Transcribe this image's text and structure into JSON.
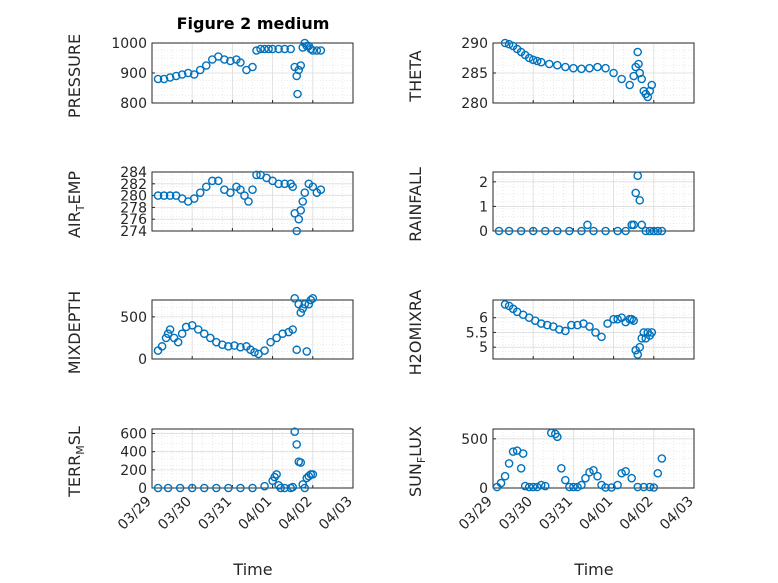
{
  "figure": {
    "title": "Figure 2 medium",
    "x_label": "Time",
    "x_tick_labels": [
      "03/29",
      "03/30",
      "03/31",
      "04/01",
      "04/02",
      "04/03"
    ]
  },
  "chart_data": [
    {
      "type": "scatter",
      "ylabel": "PRESSURE",
      "ylim": [
        800,
        1000
      ],
      "yticks": [
        800,
        900,
        1000
      ],
      "xlim": [
        0,
        5
      ],
      "grid": true,
      "color": "#0072BD",
      "x": [
        0.15,
        0.3,
        0.45,
        0.6,
        0.75,
        0.9,
        1.05,
        1.2,
        1.35,
        1.5,
        1.65,
        1.8,
        1.95,
        2.1,
        2.2,
        2.35,
        2.5,
        2.6,
        2.7,
        2.8,
        2.9,
        3.0,
        3.15,
        3.3,
        3.45,
        3.55,
        3.6,
        3.62,
        3.65,
        3.7,
        3.75,
        3.8,
        3.85,
        3.9,
        3.95,
        4.0,
        4.1,
        4.2
      ],
      "y": [
        880,
        880,
        885,
        890,
        895,
        900,
        895,
        910,
        925,
        945,
        955,
        945,
        940,
        945,
        935,
        910,
        920,
        975,
        980,
        980,
        980,
        980,
        980,
        980,
        980,
        920,
        890,
        830,
        910,
        925,
        985,
        1000,
        990,
        990,
        980,
        975,
        975,
        975
      ]
    },
    {
      "type": "scatter",
      "ylabel": "THETA",
      "ylim": [
        280,
        290
      ],
      "yticks": [
        280,
        285,
        290
      ],
      "xlim": [
        0,
        5
      ],
      "grid": true,
      "color": "#0072BD",
      "x": [
        0.3,
        0.4,
        0.5,
        0.6,
        0.7,
        0.8,
        0.9,
        1.0,
        1.1,
        1.2,
        1.4,
        1.6,
        1.8,
        2.0,
        2.2,
        2.4,
        2.6,
        2.8,
        3.0,
        3.2,
        3.4,
        3.5,
        3.55,
        3.6,
        3.62,
        3.65,
        3.7,
        3.75,
        3.8,
        3.85,
        3.9,
        3.95
      ],
      "y": [
        290,
        289.8,
        289.5,
        289,
        288.5,
        288,
        287.5,
        287.2,
        287,
        286.8,
        286.5,
        286.3,
        286,
        285.8,
        285.7,
        285.8,
        286,
        285.8,
        285,
        284,
        283,
        284.5,
        286,
        288.5,
        286.5,
        285,
        284,
        282,
        281.5,
        281,
        282,
        283
      ]
    },
    {
      "type": "scatter",
      "ylabel": "AIR_TEMP",
      "ylim": [
        274,
        284
      ],
      "yticks": [
        274,
        276,
        278,
        280,
        282,
        284
      ],
      "xlim": [
        0,
        5
      ],
      "grid": true,
      "color": "#0072BD",
      "x": [
        0.15,
        0.3,
        0.45,
        0.6,
        0.75,
        0.9,
        1.05,
        1.2,
        1.35,
        1.5,
        1.65,
        1.8,
        1.95,
        2.1,
        2.2,
        2.3,
        2.4,
        2.5,
        2.6,
        2.7,
        2.85,
        3.0,
        3.15,
        3.3,
        3.45,
        3.5,
        3.55,
        3.6,
        3.65,
        3.7,
        3.75,
        3.8,
        3.9,
        4.0,
        4.1,
        4.2
      ],
      "y": [
        280,
        280,
        280,
        280,
        279.5,
        279,
        279.5,
        280.5,
        281.5,
        282.5,
        282.5,
        281,
        280.5,
        281.5,
        281,
        280,
        279,
        281,
        283.5,
        283.5,
        283,
        282.5,
        282,
        282,
        282,
        281.5,
        277,
        274,
        276,
        277.5,
        279,
        280.5,
        282,
        281.5,
        280.5,
        281
      ]
    },
    {
      "type": "scatter",
      "ylabel": "RAINFALL",
      "ylim": [
        0,
        2.4
      ],
      "yticks": [
        0,
        1,
        2
      ],
      "xlim": [
        0,
        5
      ],
      "grid": true,
      "color": "#0072BD",
      "x": [
        0.15,
        0.4,
        0.7,
        1.0,
        1.3,
        1.6,
        1.9,
        2.2,
        2.35,
        2.5,
        2.8,
        3.1,
        3.3,
        3.45,
        3.5,
        3.55,
        3.6,
        3.65,
        3.7,
        3.8,
        3.9,
        4.0,
        4.1,
        4.2
      ],
      "y": [
        0,
        0,
        0,
        0,
        0,
        0,
        0,
        0,
        0.25,
        0,
        0,
        0,
        0,
        0.25,
        0.25,
        1.55,
        2.25,
        1.25,
        0.25,
        0,
        0,
        0,
        0,
        0
      ]
    },
    {
      "type": "scatter",
      "ylabel": "MIXDEPTH",
      "ylim": [
        0,
        700
      ],
      "yticks": [
        0,
        500
      ],
      "xlim": [
        0,
        5
      ],
      "grid": true,
      "color": "#0072BD",
      "x": [
        0.15,
        0.25,
        0.35,
        0.4,
        0.45,
        0.55,
        0.65,
        0.75,
        0.85,
        1.0,
        1.15,
        1.3,
        1.45,
        1.6,
        1.75,
        1.9,
        2.05,
        2.2,
        2.35,
        2.45,
        2.55,
        2.65,
        2.8,
        2.95,
        3.1,
        3.25,
        3.4,
        3.5,
        3.55,
        3.6,
        3.65,
        3.7,
        3.75,
        3.8,
        3.85,
        3.9,
        3.95,
        4.0
      ],
      "y": [
        100,
        150,
        250,
        300,
        350,
        250,
        200,
        300,
        380,
        400,
        350,
        300,
        250,
        200,
        170,
        150,
        160,
        140,
        150,
        110,
        80,
        60,
        100,
        200,
        250,
        300,
        320,
        350,
        720,
        110,
        650,
        550,
        600,
        650,
        90,
        650,
        700,
        720
      ]
    },
    {
      "type": "scatter",
      "ylabel": "H2OMIXRA",
      "ylim": [
        4.6,
        6.6
      ],
      "yticks": [
        5,
        5.5,
        6
      ],
      "xlim": [
        0,
        5
      ],
      "grid": true,
      "color": "#0072BD",
      "x": [
        0.3,
        0.4,
        0.5,
        0.6,
        0.75,
        0.9,
        1.05,
        1.2,
        1.35,
        1.5,
        1.65,
        1.8,
        1.95,
        2.1,
        2.25,
        2.4,
        2.55,
        2.7,
        2.85,
        3.0,
        3.1,
        3.2,
        3.3,
        3.4,
        3.45,
        3.5,
        3.55,
        3.6,
        3.65,
        3.7,
        3.75,
        3.8,
        3.85,
        3.9,
        3.95
      ],
      "y": [
        6.45,
        6.4,
        6.3,
        6.2,
        6.1,
        6.0,
        5.9,
        5.8,
        5.75,
        5.7,
        5.6,
        5.55,
        5.75,
        5.75,
        5.8,
        5.7,
        5.5,
        5.35,
        5.8,
        5.95,
        5.95,
        6.0,
        5.85,
        5.95,
        5.95,
        5.9,
        4.9,
        4.75,
        5.0,
        5.3,
        5.5,
        5.3,
        5.5,
        5.4,
        5.5
      ]
    },
    {
      "type": "scatter",
      "ylabel": "TERR_MSL",
      "ylim": [
        0,
        650
      ],
      "yticks": [
        0,
        200,
        400,
        600
      ],
      "xlim": [
        0,
        5
      ],
      "grid": true,
      "color": "#0072BD",
      "x": [
        0.15,
        0.4,
        0.7,
        1.0,
        1.3,
        1.6,
        1.9,
        2.2,
        2.5,
        2.8,
        3.0,
        3.05,
        3.1,
        3.15,
        3.2,
        3.3,
        3.45,
        3.5,
        3.55,
        3.6,
        3.65,
        3.7,
        3.75,
        3.8,
        3.85,
        3.9,
        3.95,
        4.0
      ],
      "y": [
        0,
        0,
        0,
        0,
        0,
        0,
        0,
        0,
        0,
        20,
        80,
        120,
        150,
        30,
        0,
        0,
        0,
        10,
        620,
        480,
        290,
        280,
        40,
        0,
        110,
        130,
        150,
        150
      ]
    },
    {
      "type": "scatter",
      "ylabel": "SUN_FLUX",
      "ylim": [
        0,
        600
      ],
      "yticks": [
        0,
        500
      ],
      "xlim": [
        0,
        5
      ],
      "grid": true,
      "color": "#0072BD",
      "x": [
        0.1,
        0.2,
        0.3,
        0.4,
        0.5,
        0.6,
        0.7,
        0.75,
        0.8,
        0.9,
        1.0,
        1.1,
        1.2,
        1.3,
        1.45,
        1.55,
        1.6,
        1.7,
        1.8,
        1.9,
        2.0,
        2.1,
        2.2,
        2.3,
        2.4,
        2.5,
        2.6,
        2.7,
        2.8,
        2.95,
        3.1,
        3.2,
        3.3,
        3.45,
        3.6,
        3.75,
        3.9,
        4.0,
        4.1,
        4.2
      ],
      "y": [
        10,
        50,
        120,
        250,
        370,
        380,
        200,
        350,
        20,
        10,
        10,
        10,
        30,
        20,
        560,
        550,
        520,
        200,
        80,
        10,
        10,
        10,
        30,
        100,
        160,
        180,
        120,
        30,
        5,
        5,
        30,
        150,
        170,
        100,
        10,
        10,
        10,
        5,
        150,
        300
      ]
    }
  ]
}
